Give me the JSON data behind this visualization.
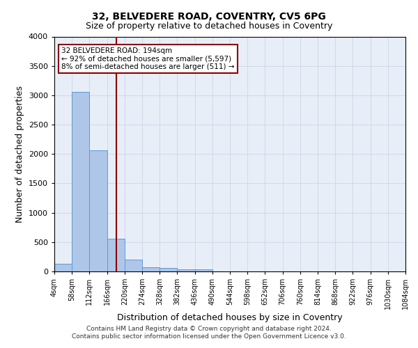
{
  "title1": "32, BELVEDERE ROAD, COVENTRY, CV5 6PG",
  "title2": "Size of property relative to detached houses in Coventry",
  "xlabel": "Distribution of detached houses by size in Coventry",
  "ylabel": "Number of detached properties",
  "footer1": "Contains HM Land Registry data © Crown copyright and database right 2024.",
  "footer2": "Contains public sector information licensed under the Open Government Licence v3.0.",
  "annotation_line1": "32 BELVEDERE ROAD: 194sqm",
  "annotation_line2": "← 92% of detached houses are smaller (5,597)",
  "annotation_line3": "8% of semi-detached houses are larger (511) →",
  "property_size": 194,
  "bin_edges": [
    4,
    58,
    112,
    166,
    220,
    274,
    328,
    382,
    436,
    490,
    544,
    598,
    652,
    706,
    760,
    814,
    868,
    922,
    976,
    1030,
    1084
  ],
  "bar_heights": [
    130,
    3060,
    2060,
    560,
    200,
    75,
    55,
    40,
    40,
    0,
    0,
    0,
    0,
    0,
    0,
    0,
    0,
    0,
    0,
    0
  ],
  "bar_color": "#aec6e8",
  "bar_edge_color": "#5b9bd5",
  "vline_color": "#8b0000",
  "vline_x": 194,
  "annotation_box_edge": "#8b0000",
  "ylim": [
    0,
    4000
  ],
  "yticks": [
    0,
    500,
    1000,
    1500,
    2000,
    2500,
    3000,
    3500,
    4000
  ],
  "grid_color": "#d0d8e8",
  "bg_color": "#e8eef8",
  "title1_fontsize": 10,
  "title2_fontsize": 9,
  "xlabel_fontsize": 9,
  "ylabel_fontsize": 9,
  "footer_fontsize": 6.5,
  "annot_fontsize": 7.5
}
